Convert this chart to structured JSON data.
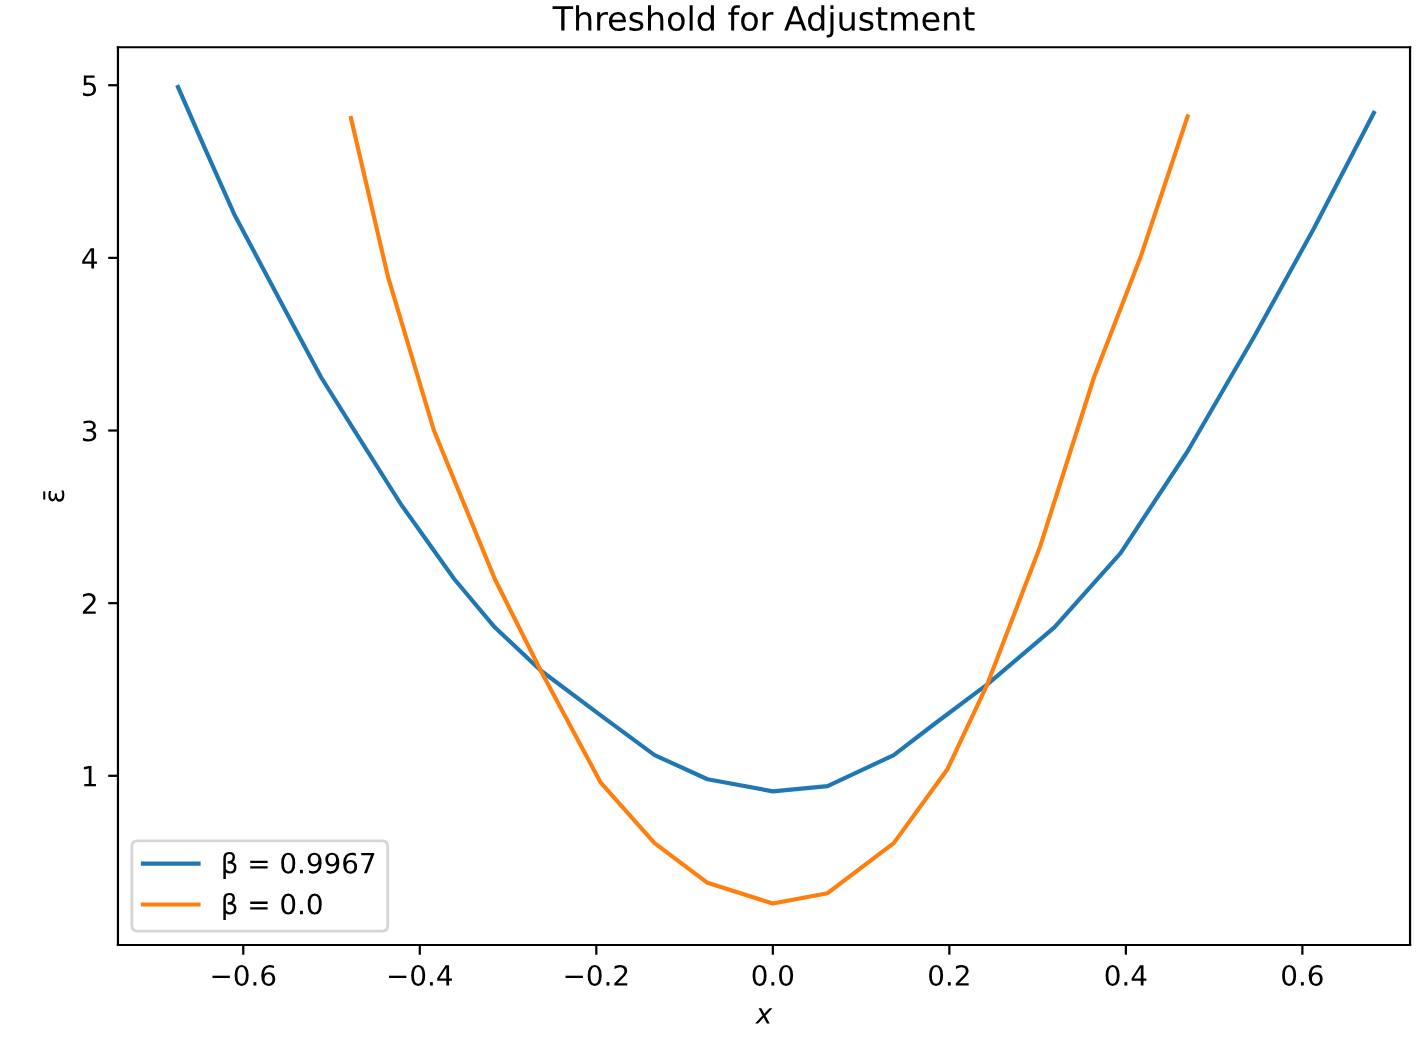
{
  "chart_data": {
    "type": "line",
    "title": "Threshold for Adjustment",
    "xlabel": "x",
    "ylabel": "ε̄",
    "xlim": [
      -0.742,
      0.722
    ],
    "ylim": [
      0.02,
      5.22
    ],
    "xticks": [
      {
        "value": -0.6,
        "label": "−0.6"
      },
      {
        "value": -0.4,
        "label": "−0.4"
      },
      {
        "value": -0.2,
        "label": "−0.2"
      },
      {
        "value": 0.0,
        "label": "0.0"
      },
      0.2,
      0.4,
      0.6
    ],
    "yticks": [
      1,
      2,
      3,
      4,
      5
    ],
    "grid": false,
    "legend": "bottom left",
    "marker": "none",
    "line_style": "solid",
    "series": [
      {
        "name": "β = 0.9967",
        "color": "#1f77b4",
        "x": [
          -0.674,
          -0.644,
          -0.61,
          -0.557,
          -0.512,
          -0.474,
          -0.421,
          -0.361,
          -0.315,
          -0.263,
          -0.195,
          -0.134,
          -0.074,
          0.0,
          0.062,
          0.137,
          0.183,
          0.243,
          0.319,
          0.394,
          0.47,
          0.545,
          0.613,
          0.681
        ],
        "values": [
          4.99,
          4.64,
          4.25,
          3.74,
          3.31,
          3.0,
          2.57,
          2.14,
          1.86,
          1.61,
          1.35,
          1.12,
          0.98,
          0.91,
          0.94,
          1.12,
          1.3,
          1.53,
          1.86,
          2.29,
          2.88,
          3.54,
          4.17,
          4.84
        ]
      },
      {
        "name": "β = 0.0",
        "color": "#ff7f0e",
        "x": [
          -0.478,
          -0.436,
          -0.384,
          -0.315,
          -0.263,
          -0.195,
          -0.134,
          -0.074,
          0.0,
          0.062,
          0.137,
          0.198,
          0.243,
          0.303,
          0.364,
          0.417,
          0.47
        ],
        "values": [
          4.81,
          3.89,
          3.0,
          2.14,
          1.61,
          0.96,
          0.61,
          0.38,
          0.26,
          0.32,
          0.61,
          1.04,
          1.53,
          2.33,
          3.31,
          4.01,
          4.82
        ]
      }
    ]
  }
}
